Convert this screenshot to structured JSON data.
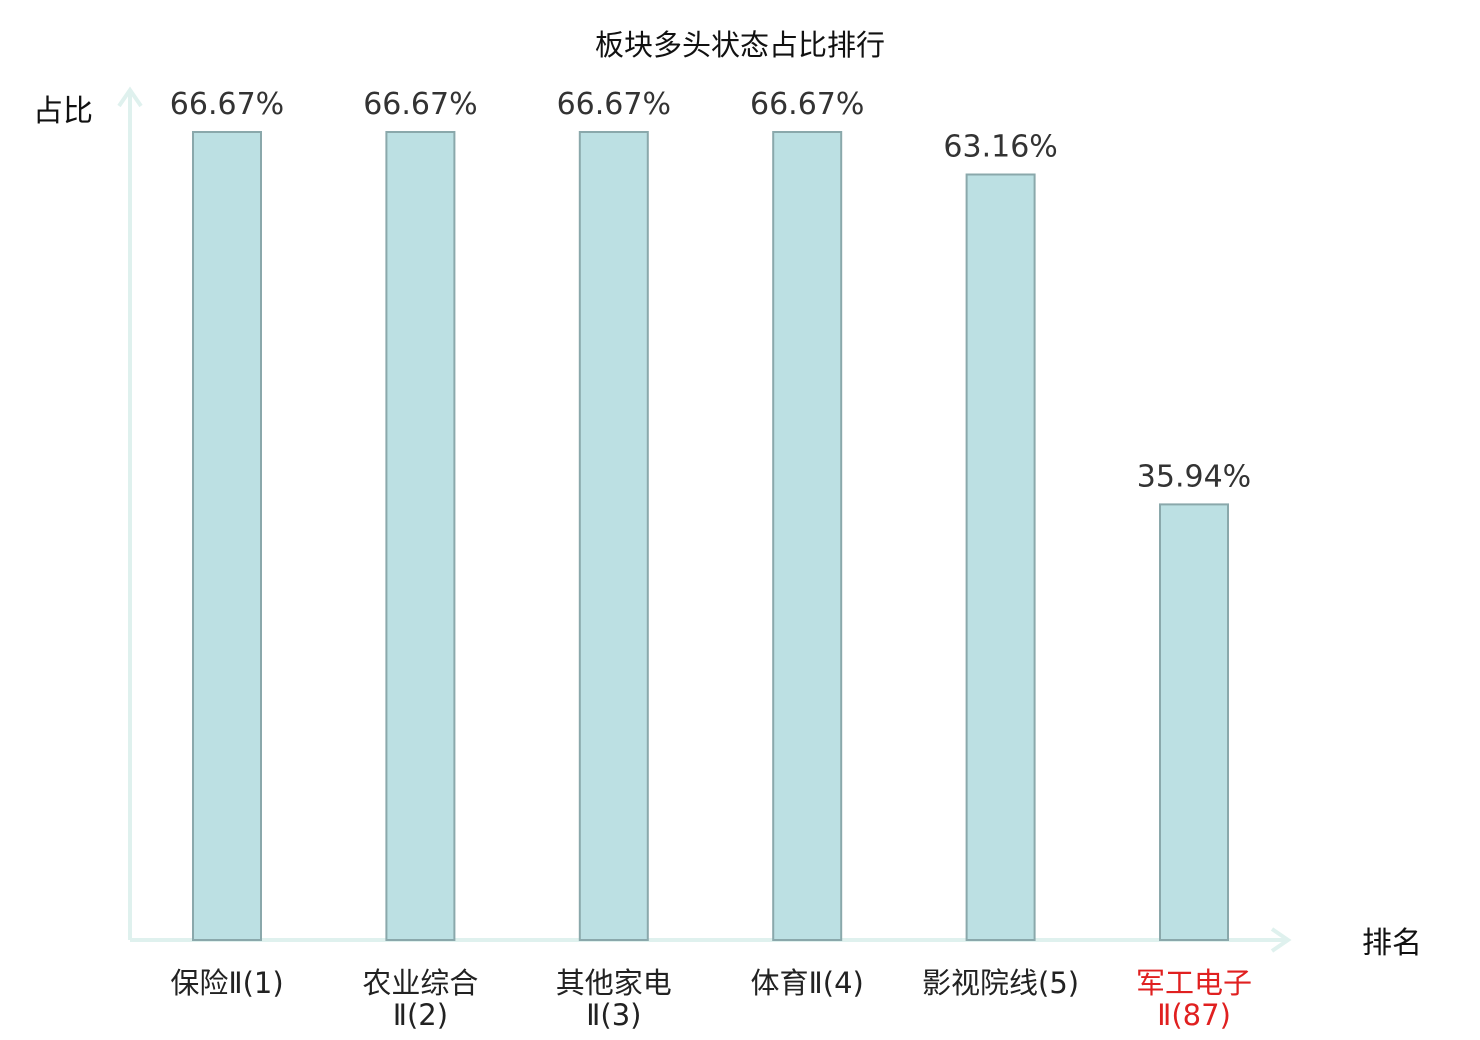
{
  "chart_data": {
    "type": "bar",
    "title": "板块多头状态占比排行",
    "ylabel": "占比",
    "xlabel": "排名",
    "ylim": [
      0,
      70
    ],
    "grid": false,
    "categories": [
      {
        "line1": "保险Ⅱ(1)",
        "line2": "",
        "highlight": false
      },
      {
        "line1": "农业综合",
        "line2": "Ⅱ(2)",
        "highlight": false
      },
      {
        "line1": "其他家电",
        "line2": "Ⅱ(3)",
        "highlight": false
      },
      {
        "line1": "体育Ⅱ(4)",
        "line2": "",
        "highlight": false
      },
      {
        "line1": "影视院线(5)",
        "line2": "",
        "highlight": false
      },
      {
        "line1": "军工电子",
        "line2": "Ⅱ(87)",
        "highlight": true
      }
    ],
    "values": [
      66.67,
      66.67,
      66.67,
      66.67,
      63.16,
      35.94
    ],
    "value_labels": [
      "66.67%",
      "66.67%",
      "66.67%",
      "66.67%",
      "63.16%",
      "35.94%"
    ],
    "colors": {
      "bar_fill": "#bce0e3",
      "bar_stroke": "#8aa8ab",
      "axis": "#dff1ee",
      "highlight_text": "#e02020",
      "normal_text": "#222222"
    }
  }
}
